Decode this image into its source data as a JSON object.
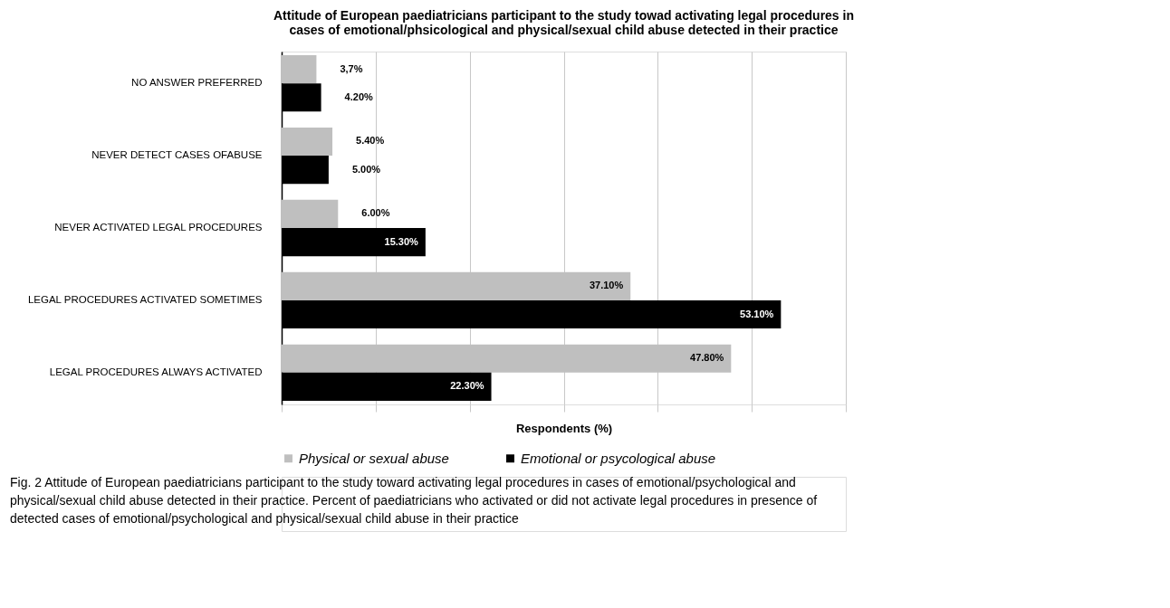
{
  "chart_data": {
    "type": "bar",
    "orientation": "horizontal",
    "title": "Attitude of European paediatricians participant to the study towad activating legal procedures in cases of emotional/phsicological and physical/sexual child abuse detected in their practice",
    "xlabel": "Respondents (%)",
    "categories": [
      "NO ANSWER PREFERRED",
      "NEVER DETECT CASES OFABUSE",
      "NEVER ACTIVATED LEGAL PROCEDURES",
      "LEGAL PROCEDURES ACTIVATED SOMETIMES",
      "LEGAL PROCEDURES ALWAYS ACTIVATED"
    ],
    "series": [
      {
        "name": "Physical or sexual abuse",
        "color": "#bfbfbf",
        "values": [
          3.7,
          5.4,
          6.0,
          37.1,
          47.8
        ],
        "value_labels": [
          "3,7%",
          "5.40%",
          "6.00%",
          "37.10%",
          "47.80%"
        ]
      },
      {
        "name": "Emotional or psycological abuse",
        "color": "#000000",
        "values": [
          4.2,
          5.0,
          15.3,
          53.1,
          22.3
        ],
        "value_labels": [
          "4.20%",
          "5.00%",
          "15.30%",
          "53.10%",
          "22.30%"
        ]
      }
    ],
    "xlim": [
      0,
      60
    ],
    "xticks": [
      {
        "value": 0,
        "label": null
      },
      {
        "value": 10,
        "label": null
      },
      {
        "value": 20,
        "label": null
      },
      {
        "value": 30,
        "label": null
      },
      {
        "value": 40,
        "label": null
      },
      {
        "value": 50,
        "label": null
      },
      {
        "value": 60,
        "label": null
      }
    ],
    "tick_labels": "y",
    "grid": "x",
    "legend": "bottom",
    "annotations": [
      "Fig. 2 Attitude of European paediatricians participant to the study toward activating legal procedures in cases of emotional/psychological and physical/sexual child abuse detected in their practice. Percent of paediatricians who activated or did not activate legal procedures in presence of detected cases of emotional/psychological and physical/sexual child abuse in their practice"
    ]
  }
}
